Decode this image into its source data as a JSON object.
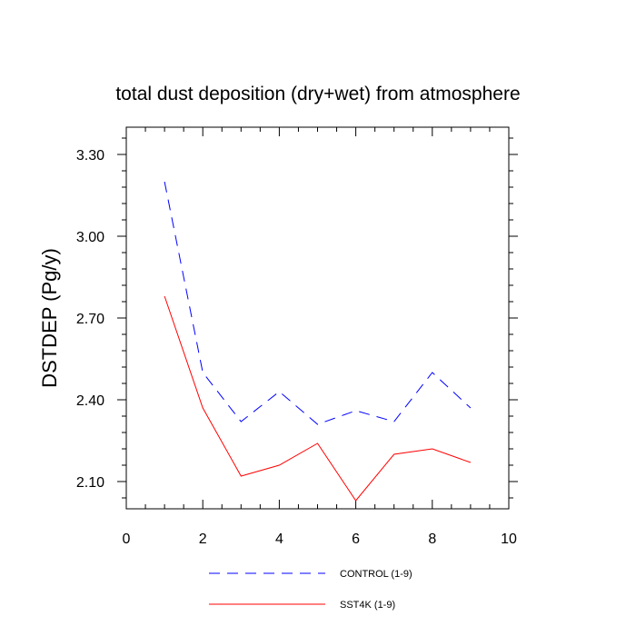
{
  "chart_data": {
    "type": "line",
    "title": "total dust deposition (dry+wet) from atmosphere",
    "xlabel": "",
    "ylabel": "DSTDEP  (Pg/y)",
    "xlim": [
      0,
      10
    ],
    "ylim": [
      2.0,
      3.4
    ],
    "x_ticks": [
      0,
      2,
      4,
      6,
      8,
      10
    ],
    "x_tick_labels": [
      "0",
      "2",
      "4",
      "6",
      "8",
      "10"
    ],
    "y_ticks": [
      2.1,
      2.4,
      2.7,
      3.0,
      3.3
    ],
    "y_tick_labels": [
      "2.10",
      "2.40",
      "2.70",
      "3.00",
      "3.30"
    ],
    "grid": false,
    "legend_position": "bottom",
    "x": [
      1,
      2,
      3,
      4,
      5,
      6,
      7,
      8,
      9
    ],
    "series": [
      {
        "name": "CONTROL (1-9)",
        "color": "#0000ff",
        "dash": "dashed",
        "values": [
          3.2,
          2.5,
          2.32,
          2.43,
          2.31,
          2.36,
          2.32,
          2.5,
          2.37
        ]
      },
      {
        "name": "SST4K (1-9)",
        "color": "#ff0000",
        "dash": "solid",
        "values": [
          2.78,
          2.37,
          2.12,
          2.16,
          2.24,
          2.03,
          2.2,
          2.22,
          2.17
        ]
      }
    ]
  }
}
